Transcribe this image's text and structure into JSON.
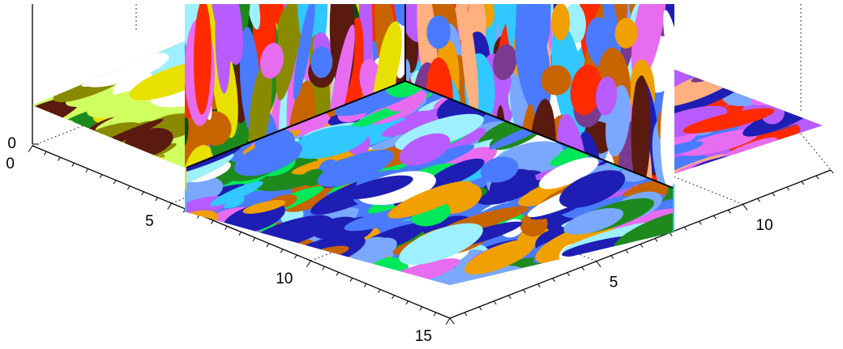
{
  "chart_data": {
    "type": "heatmap",
    "title": "",
    "xlabel": "",
    "ylabel": "",
    "zlabel": "",
    "x_axis": {
      "range": [
        0,
        15
      ],
      "tick_labels": [
        "0",
        "5",
        "10",
        "15"
      ],
      "tick_values": [
        0,
        5,
        10,
        15
      ]
    },
    "y_axis": {
      "range": [
        0,
        13
      ],
      "tick_labels": [
        "5",
        "10"
      ],
      "tick_values": [
        5,
        10
      ]
    },
    "z_axis": {
      "range": [
        0,
        10
      ],
      "tick_labels": [
        "0"
      ],
      "tick_values": [
        0
      ]
    },
    "grid": true,
    "legend": "none",
    "slices": [
      {
        "orientation": "horizontal",
        "name": "",
        "region": "back-left"
      },
      {
        "orientation": "horizontal",
        "name": "",
        "region": "back-right"
      },
      {
        "orientation": "horizontal",
        "name": "",
        "region": "front"
      },
      {
        "orientation": "vertical-left",
        "name": "",
        "region": "x-plane"
      },
      {
        "orientation": "vertical-right",
        "name": "",
        "region": "y-plane"
      }
    ],
    "colors": [
      "#4a7bff",
      "#1e1eb4",
      "#b85cff",
      "#e86cf0",
      "#7aa8ff",
      "#30c8ff",
      "#9ef0ff",
      "#ffffff",
      "#ff2a00",
      "#e8e000",
      "#8a8a00",
      "#5a1a10",
      "#c86400",
      "#ffb080",
      "#1e8a1e",
      "#0a4a0a",
      "#00e85a",
      "#d0ff60",
      "#f0a000",
      "#7a3a90"
    ]
  }
}
